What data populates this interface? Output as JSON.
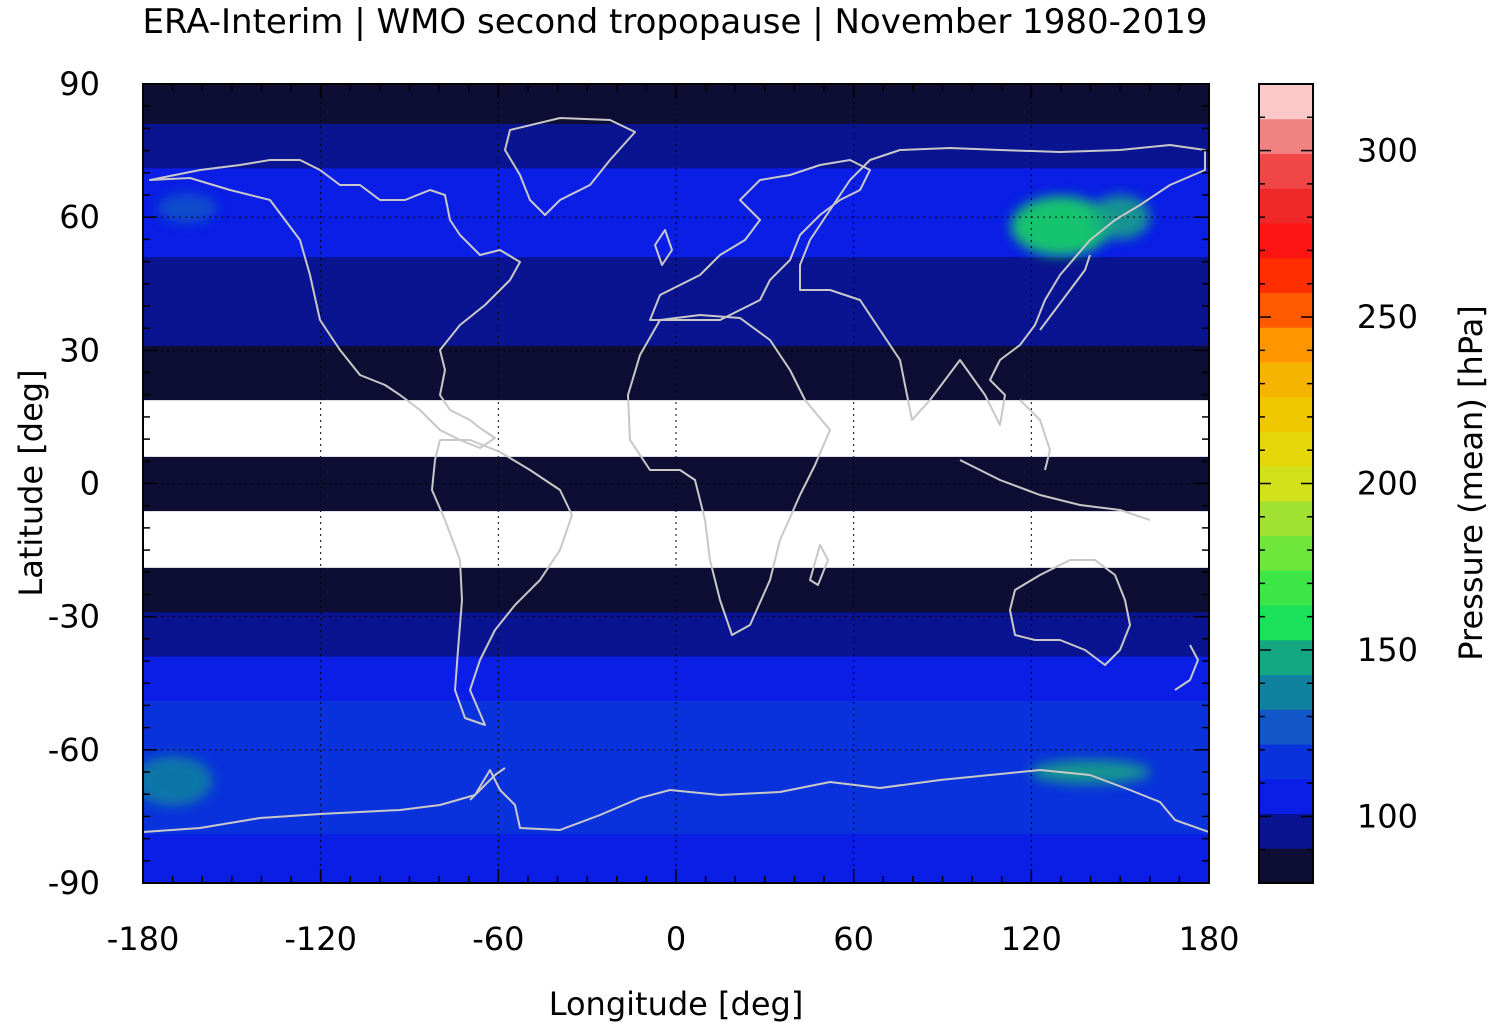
{
  "chart_data": {
    "type": "heatmap",
    "title": "ERA-Interim | WMO second tropopause | November 1980-2019",
    "xlabel": "Longitude [deg]",
    "ylabel": "Latitude [deg]",
    "colorbar_label": "Pressure (mean) [hPa]",
    "xlim": [
      -180,
      180
    ],
    "ylim": [
      -90,
      90
    ],
    "x_ticks": [
      -180,
      -120,
      -60,
      0,
      60,
      120,
      180
    ],
    "y_ticks": [
      90,
      60,
      30,
      0,
      -30,
      -60,
      -90
    ],
    "colorbar_range": [
      80,
      320
    ],
    "colorbar_ticks": [
      100,
      150,
      200,
      250,
      300
    ],
    "grid": true,
    "colorbar_colors": [
      "#0e0e34",
      "#0a1390",
      "#0a1ee6",
      "#0a32dc",
      "#1356c8",
      "#0f82a0",
      "#14a882",
      "#19e15a",
      "#3ce646",
      "#6ee63c",
      "#a0e132",
      "#d2e119",
      "#e6d70a",
      "#f0c800",
      "#f5b400",
      "#ff9600",
      "#ff5a00",
      "#ff2d00",
      "#ff1414",
      "#f02828",
      "#f04646",
      "#f08282",
      "#ffc8c8"
    ],
    "zonal_mean_hpa": [
      {
        "lat": 85,
        "value": 82
      },
      {
        "lat": 75,
        "value": 100
      },
      {
        "lat": 65,
        "value": 110
      },
      {
        "lat": 55,
        "value": 110
      },
      {
        "lat": 45,
        "value": 100
      },
      {
        "lat": 35,
        "value": 95
      },
      {
        "lat": 25,
        "value": 88
      },
      {
        "lat": 0,
        "value": 80
      },
      {
        "lat": -25,
        "value": 90
      },
      {
        "lat": -35,
        "value": 100
      },
      {
        "lat": -45,
        "value": 108
      },
      {
        "lat": -55,
        "value": 115
      },
      {
        "lat": -65,
        "value": 120
      },
      {
        "lat": -75,
        "value": 118
      },
      {
        "lat": -85,
        "value": 110
      }
    ],
    "regional_maxima_hpa": [
      {
        "region": "Siberia / NE Asia",
        "value": 160
      },
      {
        "region": "East Antarctica coast",
        "value": 145
      }
    ]
  }
}
